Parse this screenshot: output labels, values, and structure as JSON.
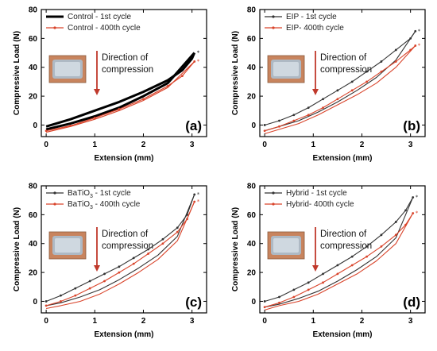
{
  "chart_data": [
    {
      "type": "line",
      "panel_label": "(a)",
      "xlabel": "Extension (mm)",
      "ylabel": "Compressive Load (N)",
      "xlim": [
        -0.1,
        3.3
      ],
      "ylim": [
        -8,
        80
      ],
      "xticks": [
        0,
        1,
        2,
        3
      ],
      "yticks": [
        0,
        20,
        40,
        60,
        80
      ],
      "legend_position": "top-left",
      "annotation": {
        "line1": "Direction of",
        "line2": "compression"
      },
      "series": [
        {
          "name": "Control - 1st cycle",
          "color": "#000000",
          "width": 3,
          "markers": false,
          "x": [
            0,
            0.5,
            1,
            1.5,
            2,
            2.5,
            2.8,
            3.0,
            3.05
          ],
          "y": [
            -1,
            4,
            10,
            16,
            23,
            31,
            38,
            46,
            50
          ]
        },
        {
          "name": "",
          "color": "#000000",
          "width": 3,
          "markers": false,
          "x": [
            3.05,
            2.5,
            2.0,
            1.5,
            1.0,
            0.5,
            0
          ],
          "y": [
            50,
            29,
            20,
            12,
            6,
            1,
            -3
          ]
        },
        {
          "name": "Control - 400th cycle",
          "color": "#d9442b",
          "width": 1.2,
          "markers": true,
          "x": [
            0,
            0.5,
            1,
            1.5,
            2,
            2.5,
            2.8,
            3.05
          ],
          "y": [
            -4,
            -0.5,
            5,
            11,
            18,
            27,
            34,
            44
          ]
        },
        {
          "name": "",
          "color": "#d9442b",
          "width": 1.2,
          "markers": false,
          "x": [
            3.05,
            2.5,
            2.0,
            1.5,
            1.0,
            0.5,
            0
          ],
          "y": [
            44,
            26,
            17,
            10,
            4,
            -1,
            -5
          ]
        }
      ]
    },
    {
      "type": "line",
      "panel_label": "(b)",
      "xlabel": "Extension (mm)",
      "ylabel": "Compressive Load (N)",
      "xlim": [
        -0.1,
        3.3
      ],
      "ylim": [
        -8,
        80
      ],
      "xticks": [
        0,
        1,
        2,
        3
      ],
      "yticks": [
        0,
        20,
        40,
        60,
        80
      ],
      "legend_position": "top-left",
      "annotation": {
        "line1": "Direction of",
        "line2": "compression"
      },
      "series": [
        {
          "name": "EIP - 1st cycle",
          "color": "#333333",
          "width": 1.1,
          "markers": true,
          "x": [
            0,
            0.3,
            0.6,
            0.9,
            1.2,
            1.5,
            1.8,
            2.1,
            2.4,
            2.7,
            3.0,
            3.1
          ],
          "y": [
            0,
            3,
            7,
            12,
            18,
            24,
            30,
            37,
            44,
            52,
            60,
            65
          ]
        },
        {
          "name": "",
          "color": "#333333",
          "width": 1.1,
          "markers": false,
          "x": [
            3.1,
            2.7,
            2.3,
            1.9,
            1.5,
            1.1,
            0.7,
            0.3,
            0
          ],
          "y": [
            65,
            45,
            33,
            24,
            16,
            9,
            3,
            -1,
            -4
          ]
        },
        {
          "name": "EIP- 400th cycle",
          "color": "#d9442b",
          "width": 1.1,
          "markers": true,
          "x": [
            0,
            0.3,
            0.6,
            0.9,
            1.2,
            1.5,
            1.8,
            2.1,
            2.4,
            2.7,
            3.0,
            3.1
          ],
          "y": [
            -4,
            -1,
            3,
            7,
            12,
            18,
            24,
            30,
            37,
            44,
            52,
            55
          ]
        },
        {
          "name": "",
          "color": "#d9442b",
          "width": 1.1,
          "markers": false,
          "x": [
            3.1,
            2.7,
            2.3,
            1.9,
            1.5,
            1.1,
            0.7,
            0.3,
            0
          ],
          "y": [
            55,
            40,
            29,
            21,
            14,
            7,
            1,
            -3,
            -6
          ]
        }
      ]
    },
    {
      "type": "line",
      "panel_label": "(c)",
      "xlabel": "Extension (mm)",
      "ylabel": "Compressive Load (N)",
      "xlim": [
        -0.1,
        3.3
      ],
      "ylim": [
        -8,
        80
      ],
      "xticks": [
        0,
        1,
        2,
        3
      ],
      "yticks": [
        0,
        20,
        40,
        60,
        80
      ],
      "legend_position": "top-left",
      "legend_rich": [
        {
          "pre": "BaTiO",
          "sub": "3",
          "post": " - 1st cycle"
        },
        {
          "pre": "BaTiO",
          "sub": "3",
          "post": " - 400th cycle"
        }
      ],
      "annotation": {
        "line1": "Direction of",
        "line2": "compression"
      },
      "series": [
        {
          "name": "BaTiO3 - 1st cycle",
          "color": "#333333",
          "width": 1.1,
          "markers": true,
          "x": [
            0,
            0.3,
            0.6,
            0.9,
            1.2,
            1.5,
            1.8,
            2.1,
            2.4,
            2.7,
            2.9,
            3.05
          ],
          "y": [
            0,
            4,
            9,
            14,
            19,
            24,
            30,
            36,
            43,
            51,
            60,
            74
          ]
        },
        {
          "name": "",
          "color": "#333333",
          "width": 1.1,
          "markers": false,
          "x": [
            3.05,
            2.7,
            2.3,
            1.9,
            1.5,
            1.1,
            0.7,
            0.3,
            0
          ],
          "y": [
            74,
            45,
            32,
            23,
            15,
            8,
            3,
            -1,
            -3
          ]
        },
        {
          "name": "BaTiO3 - 400th cycle",
          "color": "#d9442b",
          "width": 1.1,
          "markers": true,
          "x": [
            0,
            0.3,
            0.6,
            0.9,
            1.2,
            1.5,
            1.8,
            2.1,
            2.4,
            2.7,
            2.9,
            3.05
          ],
          "y": [
            -3,
            0,
            4,
            9,
            14,
            20,
            26,
            33,
            40,
            48,
            57,
            69
          ]
        },
        {
          "name": "",
          "color": "#d9442b",
          "width": 1.1,
          "markers": false,
          "x": [
            3.05,
            2.7,
            2.3,
            1.9,
            1.5,
            1.1,
            0.7,
            0.3,
            0
          ],
          "y": [
            69,
            42,
            29,
            20,
            12,
            5,
            0,
            -3,
            -5
          ]
        }
      ]
    },
    {
      "type": "line",
      "panel_label": "(d)",
      "xlabel": "Extension (mm)",
      "ylabel": "Compressive Load (N)",
      "xlim": [
        -0.1,
        3.3
      ],
      "ylim": [
        -8,
        80
      ],
      "xticks": [
        0,
        1,
        2,
        3
      ],
      "yticks": [
        0,
        20,
        40,
        60,
        80
      ],
      "legend_position": "top-left",
      "annotation": {
        "line1": "Direction of",
        "line2": "compression"
      },
      "series": [
        {
          "name": "Hybrid - 1st cycle",
          "color": "#333333",
          "width": 1.1,
          "markers": true,
          "x": [
            0,
            0.3,
            0.6,
            0.9,
            1.2,
            1.5,
            1.8,
            2.1,
            2.4,
            2.7,
            2.9,
            3.05
          ],
          "y": [
            0,
            3,
            8,
            13,
            19,
            25,
            31,
            38,
            46,
            55,
            63,
            72
          ]
        },
        {
          "name": "",
          "color": "#333333",
          "width": 1.1,
          "markers": false,
          "x": [
            3.05,
            2.7,
            2.3,
            1.9,
            1.5,
            1.1,
            0.7,
            0.3,
            0
          ],
          "y": [
            72,
            44,
            31,
            22,
            14,
            7,
            2,
            -2,
            -4
          ]
        },
        {
          "name": "Hybrid- 400th cycle",
          "color": "#d9442b",
          "width": 1.1,
          "markers": true,
          "x": [
            0,
            0.3,
            0.6,
            0.9,
            1.2,
            1.5,
            1.8,
            2.1,
            2.4,
            2.7,
            2.9,
            3.05
          ],
          "y": [
            -4,
            -1,
            3,
            8,
            13,
            19,
            25,
            31,
            38,
            46,
            53,
            61
          ]
        },
        {
          "name": "",
          "color": "#d9442b",
          "width": 1.1,
          "markers": false,
          "x": [
            3.05,
            2.7,
            2.3,
            1.9,
            1.5,
            1.1,
            0.7,
            0.3,
            0
          ],
          "y": [
            61,
            40,
            28,
            19,
            12,
            5,
            0,
            -3,
            -6
          ]
        }
      ]
    }
  ]
}
